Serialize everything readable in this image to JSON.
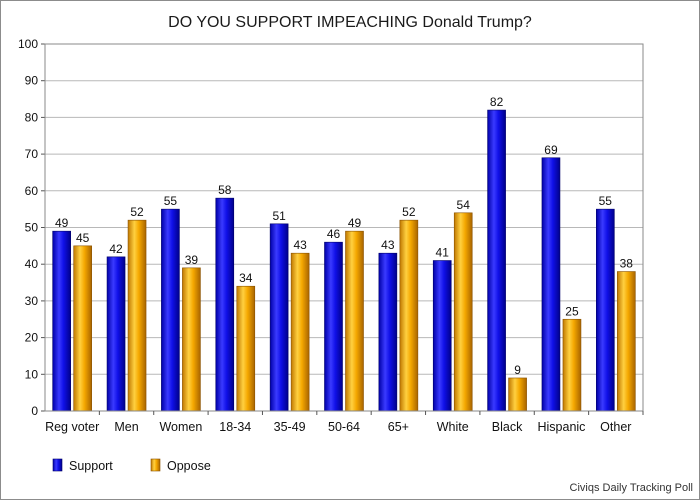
{
  "chart_data": {
    "type": "bar",
    "title": "DO YOU SUPPORT IMPEACHING Donald Trump?",
    "categories": [
      "Reg voter",
      "Men",
      "Women",
      "18-34",
      "35-49",
      "50-64",
      "65+",
      "White",
      "Black",
      "Hispanic",
      "Other"
    ],
    "series": [
      {
        "name": "Support",
        "values": [
          49,
          42,
          55,
          58,
          51,
          46,
          43,
          41,
          82,
          69,
          55
        ],
        "color": "#1a1ae0"
      },
      {
        "name": "Oppose",
        "values": [
          45,
          52,
          39,
          34,
          43,
          49,
          52,
          54,
          9,
          25,
          38
        ],
        "color": "#f0a000"
      }
    ],
    "ylim": [
      0,
      100
    ],
    "yticks": [
      0,
      10,
      20,
      30,
      40,
      50,
      60,
      70,
      80,
      90,
      100
    ],
    "grid": true,
    "legend": "bottom-left",
    "source": "Civiqs Daily Tracking Poll"
  }
}
